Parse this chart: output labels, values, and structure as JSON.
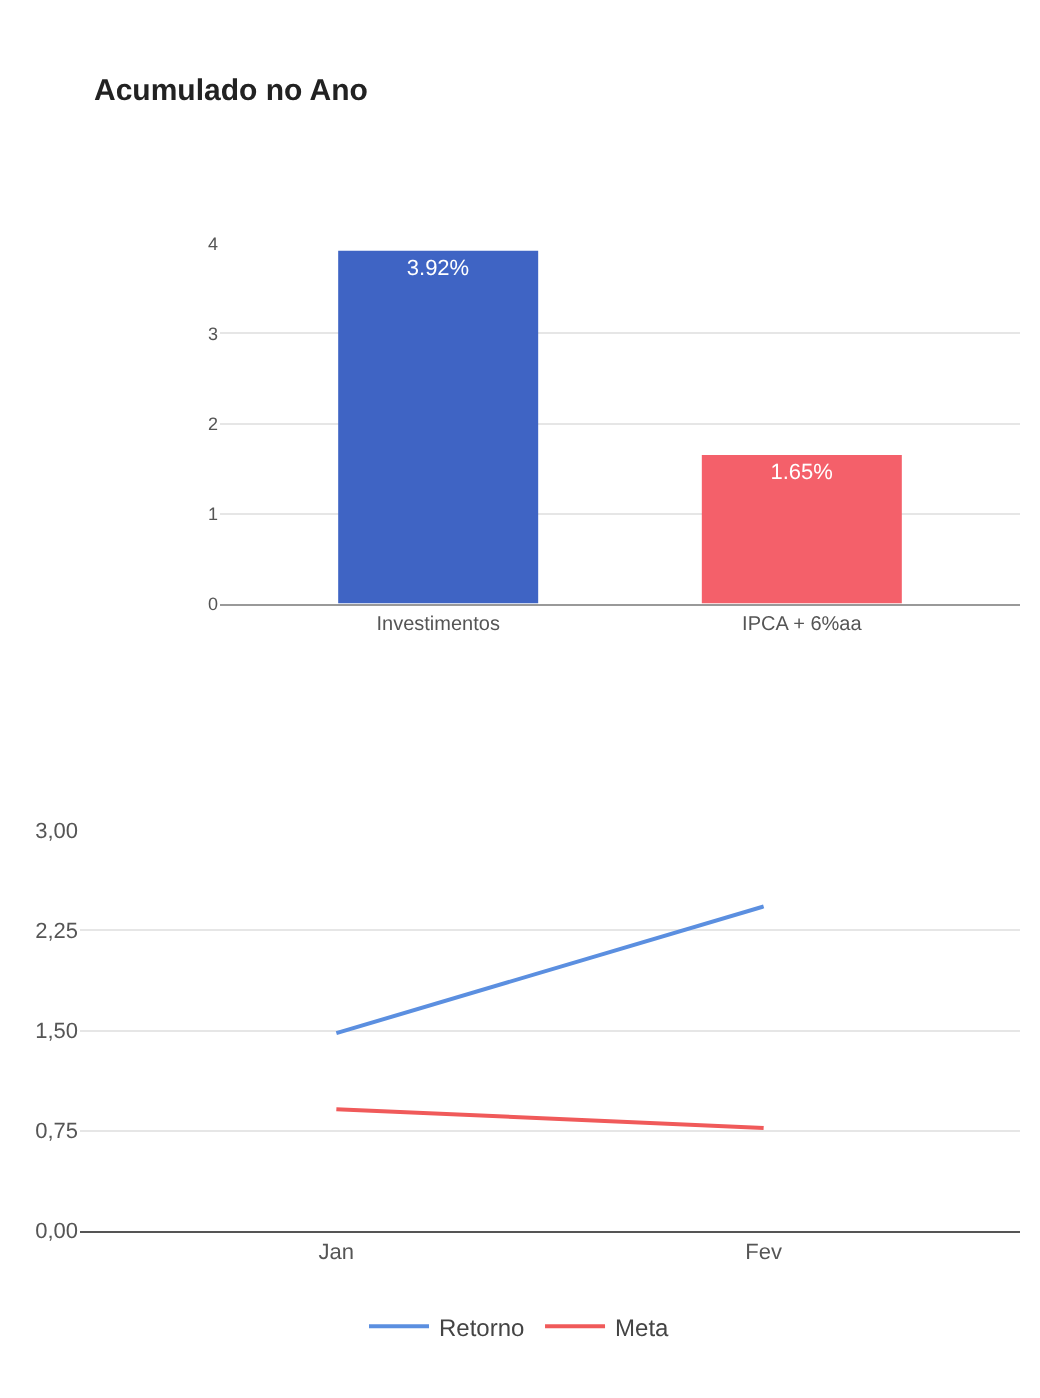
{
  "chart_data": [
    {
      "type": "bar",
      "title": "Acumulado no Ano",
      "categories": [
        "Investimentos",
        "IPCA + 6%aa"
      ],
      "values": [
        3.92,
        1.65
      ],
      "colors": [
        "#3f64c4",
        "#f4606a"
      ],
      "value_labels": [
        "3.92%",
        "1.65%"
      ],
      "ylim": [
        0,
        4
      ],
      "yticks": [
        0,
        1,
        2,
        3,
        4
      ],
      "grid": "y",
      "legend": false
    },
    {
      "type": "line",
      "categories": [
        "Jan",
        "Fev"
      ],
      "series": [
        {
          "name": "Retorno",
          "color": "#5b8fe0",
          "values": [
            1.48,
            2.43
          ]
        },
        {
          "name": "Meta",
          "color": "#f05a5a",
          "values": [
            0.91,
            0.77
          ]
        }
      ],
      "ylim": [
        0,
        3
      ],
      "yticks": [
        {
          "value": 0,
          "label": "0,00"
        },
        {
          "value": 0.75,
          "label": "0,75"
        },
        {
          "value": 1.5,
          "label": "1,50"
        },
        {
          "value": 2.25,
          "label": "2,25"
        },
        {
          "value": 3,
          "label": "3,00"
        }
      ],
      "grid": "y",
      "legend": "bottom",
      "marker": "none",
      "line_style": "solid"
    }
  ]
}
